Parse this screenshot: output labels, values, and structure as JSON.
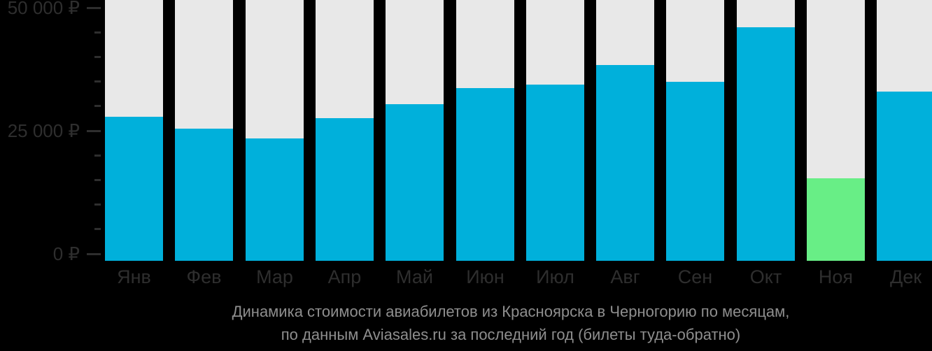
{
  "chart_data": {
    "type": "bar",
    "categories": [
      "Янв",
      "Фев",
      "Мар",
      "Апр",
      "Май",
      "Июн",
      "Июл",
      "Авг",
      "Сен",
      "Окт",
      "Ноя",
      "Дек"
    ],
    "values": [
      27800,
      25400,
      23400,
      27600,
      30400,
      33600,
      34400,
      38300,
      34900,
      46000,
      15400,
      33000
    ],
    "unit": "₽",
    "title": "",
    "xlabel": "",
    "ylabel": "",
    "ylim": [
      0,
      50000
    ],
    "y_major_ticks": [
      {
        "value": 50000,
        "label": "50 000 ₽"
      },
      {
        "value": 25000,
        "label": "25 000 ₽"
      },
      {
        "value": 0,
        "label": "0 ₽"
      }
    ],
    "y_minor_step": 5000,
    "grid": "off",
    "legend": "none",
    "highlight_index": 10,
    "colors": {
      "bar": "#00B0DB",
      "highlight": "#68EE86",
      "column_bg": "#E8E8E8",
      "axis_text": "#2E2E2E",
      "caption_text": "#8E8E8E",
      "background": "#000000"
    }
  },
  "caption": {
    "line1": "Динамика стоимости авиабилетов из Красноярска в Черногорию по месяцам,",
    "line2": "по данным Aviasales.ru за последний год (билеты туда-обратно)"
  }
}
